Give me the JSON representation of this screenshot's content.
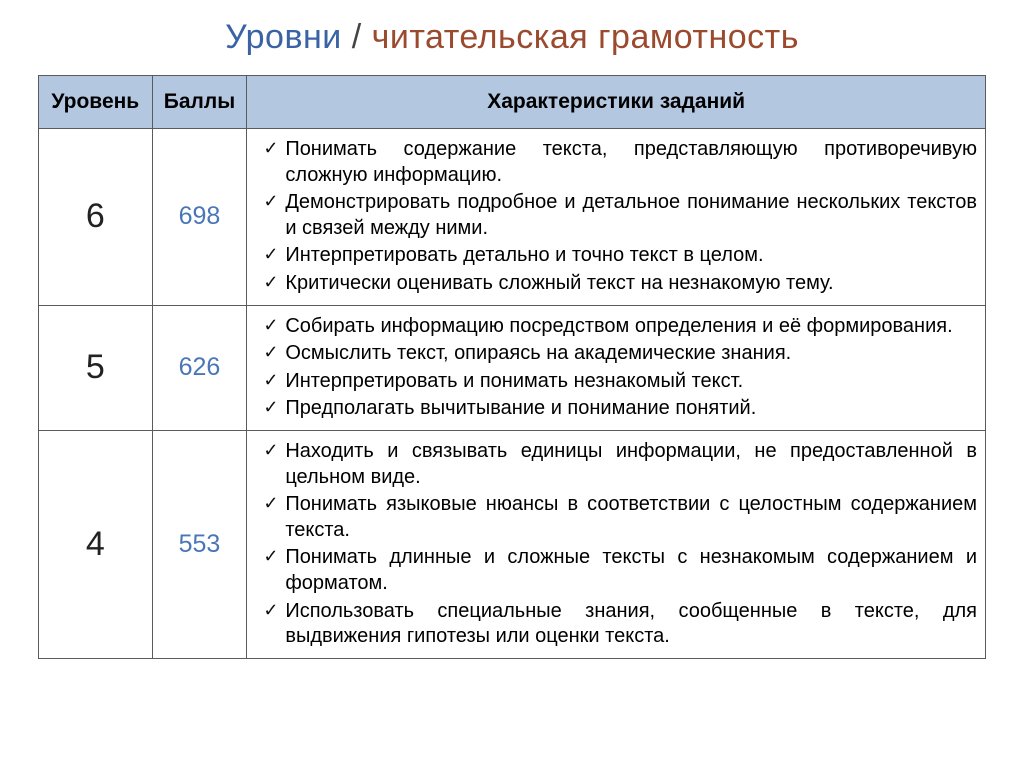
{
  "title": {
    "left": "Уровни",
    "sep": "/",
    "right": "читательская грамотность"
  },
  "table": {
    "headers": {
      "level": "Уровень",
      "score": "Баллы",
      "desc": "Характеристики заданий"
    },
    "header_bg": "#b4c7e1",
    "border_color": "#5b5b5b",
    "score_color": "#4a76b8",
    "level_color": "#222222",
    "desc_fontsize": 20,
    "rows": [
      {
        "level": "6",
        "score": "698",
        "items": [
          {
            "text": "Понимать содержание текста, представляющую противоречивую сложную информацию.",
            "justify": "full2"
          },
          {
            "text": "Демонстрировать подробное и детальное понимание нескольких текстов и связей между ними.",
            "justify": "full2"
          },
          {
            "text": "Интерпретировать детально и точно текст в целом.",
            "justify": "left"
          },
          {
            "text": "Критически оценивать сложный текст на незнакомую тему.",
            "justify": "left"
          }
        ]
      },
      {
        "level": "5",
        "score": "626",
        "items": [
          {
            "text": "Собирать информацию посредством определения и её формирования.",
            "justify": "full2"
          },
          {
            "text": "Осмыслить текст, опираясь на академические знания.",
            "justify": "left"
          },
          {
            "text": "Интерпретировать и понимать незнакомый текст.",
            "justify": "left"
          },
          {
            "text": "Предполагать вычитывание и понимание понятий.",
            "justify": "left"
          }
        ]
      },
      {
        "level": "4",
        "score": "553",
        "items": [
          {
            "text": "Находить и связывать единицы информации, не предоставленной в цельном виде.",
            "justify": "full2"
          },
          {
            "text": "Понимать языковые нюансы в соответствии с целостным содержанием текста.",
            "justify": "full2"
          },
          {
            "text": "Понимать длинные и сложные тексты с незнакомым содержанием и форматом.",
            "justify": "full2"
          },
          {
            "text": "Использовать специальные знания, сообщенные в тексте,  для выдвижения гипотезы или оценки текста.",
            "justify": "full2"
          }
        ]
      }
    ]
  }
}
